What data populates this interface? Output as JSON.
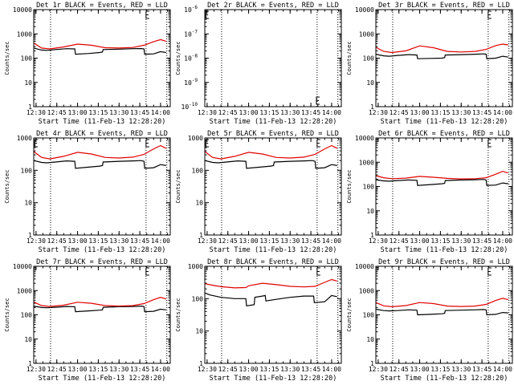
{
  "figure": {
    "background": "#ffffff",
    "colors": {
      "events": "#000000",
      "lld": "#e00000",
      "axes": "#000000"
    }
  },
  "chart_data": [
    {
      "type": "line",
      "id": "det1",
      "title": "Det 1r BLACK = Events, RED = LLD",
      "xlabel": "Start Time (11-Feb-13 12:28:20)",
      "ylabel": "Counts/sec",
      "xlim": [
        "12:28:20",
        "14:07:00"
      ],
      "ylim": [
        1,
        10000
      ],
      "yscale": "log",
      "xticks": [
        "12:30",
        "12:45",
        "13:00",
        "13:15",
        "13:30",
        "13:45",
        "14:00"
      ],
      "yticks": [
        "1",
        "10",
        "100",
        "1000",
        "10000"
      ],
      "vlines": [
        "12:40:30",
        "13:49:30",
        "14:04:30"
      ],
      "corner_marks": [
        "13:49:30"
      ],
      "series": [
        {
          "name": "Events",
          "color": "#000000",
          "x": [
            "12:28:20",
            "12:34:00",
            "12:38:00",
            "12:44:00",
            "12:52:00",
            "12:58:00",
            "12:58:30",
            "13:08:00",
            "13:16:00",
            "13:18:00",
            "13:18:30",
            "13:30:00",
            "13:40:00",
            "13:46:00",
            "13:48:00",
            "13:48:30",
            "13:55:00",
            "14:00:00",
            "14:04:00"
          ],
          "y": [
            260,
            215,
            210,
            225,
            245,
            240,
            145,
            155,
            170,
            180,
            225,
            235,
            245,
            250,
            240,
            145,
            150,
            185,
            170
          ]
        },
        {
          "name": "LLD",
          "color": "#e00000",
          "x": [
            "12:28:20",
            "12:34:00",
            "12:40:00",
            "12:50:00",
            "13:00:00",
            "13:10:00",
            "13:20:00",
            "13:30:00",
            "13:40:00",
            "13:48:00",
            "13:55:00",
            "14:00:00",
            "14:04:00"
          ],
          "y": [
            420,
            260,
            240,
            290,
            380,
            340,
            270,
            260,
            275,
            340,
            480,
            580,
            500
          ]
        }
      ]
    },
    {
      "type": "line",
      "id": "det2",
      "title": "Det 2r BLACK = Events, RED = LLD",
      "xlabel": "Start Time (11-Feb-13 12:28:20)",
      "ylabel": "Counts/sec",
      "xlim": [
        "12:28:20",
        "14:07:00"
      ],
      "ylim": [
        1e-10,
        1e-06
      ],
      "yscale": "log",
      "xticks": [
        "12:30",
        "12:45",
        "13:00",
        "13:15",
        "13:30",
        "13:45",
        "14:00"
      ],
      "yticks": [
        "10^-10",
        "10^-9",
        "10^-8",
        "10^-7",
        "10^-6"
      ],
      "vlines": [
        "12:40:30",
        "13:49:30",
        "14:04:30"
      ],
      "corner_marks": [
        "12:29:00",
        "13:49:00"
      ],
      "series": []
    },
    {
      "type": "line",
      "id": "det3",
      "title": "Det 3r BLACK = Events, RED = LLD",
      "xlabel": "Start Time (11-Feb-13 12:28:20)",
      "ylabel": "Counts/sec",
      "xlim": [
        "12:28:20",
        "14:07:00"
      ],
      "ylim": [
        1,
        10000
      ],
      "yscale": "log",
      "xticks": [
        "12:30",
        "12:45",
        "13:00",
        "13:15",
        "13:30",
        "13:45",
        "14:00"
      ],
      "yticks": [
        "1",
        "10",
        "100",
        "1000",
        "10000"
      ],
      "vlines": [
        "12:40:30",
        "13:49:30",
        "14:04:30"
      ],
      "corner_marks": [
        "13:49:30"
      ],
      "series": [
        {
          "name": "Events",
          "color": "#000000",
          "x": [
            "12:28:20",
            "12:34:00",
            "12:38:00",
            "12:44:00",
            "12:52:00",
            "12:58:00",
            "12:58:30",
            "13:08:00",
            "13:16:00",
            "13:18:00",
            "13:18:30",
            "13:30:00",
            "13:40:00",
            "13:46:00",
            "13:48:00",
            "13:48:30",
            "13:55:00",
            "14:00:00",
            "14:04:00"
          ],
          "y": [
            145,
            125,
            120,
            130,
            140,
            135,
            95,
            98,
            100,
            105,
            135,
            140,
            145,
            150,
            145,
            95,
            100,
            120,
            110
          ]
        },
        {
          "name": "LLD",
          "color": "#e00000",
          "x": [
            "12:28:20",
            "12:34:00",
            "12:40:00",
            "12:50:00",
            "13:00:00",
            "13:10:00",
            "13:20:00",
            "13:30:00",
            "13:40:00",
            "13:48:00",
            "13:55:00",
            "14:00:00",
            "14:04:00"
          ],
          "y": [
            280,
            190,
            170,
            200,
            320,
            270,
            190,
            180,
            190,
            230,
            330,
            380,
            350
          ]
        }
      ]
    },
    {
      "type": "line",
      "id": "det4",
      "title": "Det 4r BLACK = Events, RED = LLD",
      "xlabel": "Start Time (11-Feb-13 12:28:20)",
      "ylabel": "Counts/sec",
      "xlim": [
        "12:28:20",
        "14:07:00"
      ],
      "ylim": [
        1,
        1000
      ],
      "yscale": "log",
      "xticks": [
        "12:30",
        "12:45",
        "13:00",
        "13:15",
        "13:30",
        "13:45",
        "14:00"
      ],
      "yticks": [
        "1",
        "10",
        "100",
        "1000"
      ],
      "vlines": [
        "12:40:30",
        "13:49:30",
        "14:04:30"
      ],
      "corner_marks": [
        "12:29:00",
        "13:49:30"
      ],
      "series": [
        {
          "name": "Events",
          "color": "#000000",
          "x": [
            "12:28:20",
            "12:34:00",
            "12:38:00",
            "12:44:00",
            "12:52:00",
            "12:58:00",
            "12:58:30",
            "13:08:00",
            "13:16:00",
            "13:18:00",
            "13:18:30",
            "13:30:00",
            "13:40:00",
            "13:46:00",
            "13:48:00",
            "13:48:30",
            "13:55:00",
            "14:00:00",
            "14:04:00"
          ],
          "y": [
            200,
            175,
            170,
            180,
            195,
            190,
            115,
            125,
            135,
            140,
            180,
            190,
            195,
            200,
            190,
            115,
            120,
            150,
            140
          ]
        },
        {
          "name": "LLD",
          "color": "#e00000",
          "x": [
            "12:28:20",
            "12:34:00",
            "12:40:00",
            "12:50:00",
            "13:00:00",
            "13:10:00",
            "13:20:00",
            "13:30:00",
            "13:40:00",
            "13:48:00",
            "13:55:00",
            "14:00:00",
            "14:04:00"
          ],
          "y": [
            380,
            250,
            225,
            270,
            360,
            320,
            250,
            240,
            255,
            310,
            460,
            580,
            480
          ]
        }
      ]
    },
    {
      "type": "line",
      "id": "det5",
      "title": "Det 5r BLACK = Events, RED = LLD",
      "xlabel": "Start Time (11-Feb-13 12:28:20)",
      "ylabel": "Counts/sec",
      "xlim": [
        "12:28:20",
        "14:07:00"
      ],
      "ylim": [
        1,
        1000
      ],
      "yscale": "log",
      "xticks": [
        "12:30",
        "12:45",
        "13:00",
        "13:15",
        "13:30",
        "13:45",
        "14:00"
      ],
      "yticks": [
        "1",
        "10",
        "100",
        "1000"
      ],
      "vlines": [
        "12:40:30",
        "13:49:30",
        "14:04:30"
      ],
      "corner_marks": [
        "12:29:00",
        "13:49:30"
      ],
      "series": [
        {
          "name": "Events",
          "color": "#000000",
          "x": [
            "12:28:20",
            "12:34:00",
            "12:38:00",
            "12:44:00",
            "12:52:00",
            "12:58:00",
            "12:58:30",
            "13:08:00",
            "13:16:00",
            "13:18:00",
            "13:18:30",
            "13:30:00",
            "13:40:00",
            "13:46:00",
            "13:48:00",
            "13:48:30",
            "13:55:00",
            "14:00:00",
            "14:04:00"
          ],
          "y": [
            200,
            175,
            170,
            180,
            195,
            190,
            115,
            125,
            135,
            140,
            180,
            190,
            195,
            200,
            190,
            115,
            120,
            150,
            140
          ]
        },
        {
          "name": "LLD",
          "color": "#e00000",
          "x": [
            "12:28:20",
            "12:34:00",
            "12:40:00",
            "12:50:00",
            "13:00:00",
            "13:10:00",
            "13:20:00",
            "13:30:00",
            "13:40:00",
            "13:48:00",
            "13:55:00",
            "14:00:00",
            "14:04:00"
          ],
          "y": [
            380,
            250,
            225,
            270,
            360,
            320,
            250,
            240,
            255,
            310,
            460,
            580,
            480
          ]
        }
      ]
    },
    {
      "type": "line",
      "id": "det6",
      "title": "Det 6r BLACK = Events, RED = LLD",
      "xlabel": "Start Time (11-Feb-13 12:28:20)",
      "ylabel": "Counts/sec",
      "xlim": [
        "12:28:20",
        "14:07:00"
      ],
      "ylim": [
        1,
        10000
      ],
      "yscale": "log",
      "xticks": [
        "12:30",
        "12:45",
        "13:00",
        "13:15",
        "13:30",
        "13:45",
        "14:00"
      ],
      "yticks": [
        "1",
        "10",
        "100",
        "1000",
        "10000"
      ],
      "vlines": [
        "12:40:30",
        "13:49:30",
        "14:04:30"
      ],
      "corner_marks": [
        "13:49:30"
      ],
      "series": [
        {
          "name": "Events",
          "color": "#000000",
          "x": [
            "12:28:20",
            "12:34:00",
            "12:38:00",
            "12:44:00",
            "12:52:00",
            "12:58:00",
            "12:58:30",
            "13:08:00",
            "13:16:00",
            "13:18:00",
            "13:18:30",
            "13:30:00",
            "13:40:00",
            "13:46:00",
            "13:48:00",
            "13:48:30",
            "13:55:00",
            "14:00:00",
            "14:04:00"
          ],
          "y": [
            190,
            170,
            165,
            175,
            185,
            180,
            110,
            120,
            130,
            135,
            175,
            185,
            190,
            195,
            185,
            110,
            115,
            140,
            130
          ]
        },
        {
          "name": "LLD",
          "color": "#e00000",
          "x": [
            "12:28:20",
            "12:34:00",
            "12:40:00",
            "12:50:00",
            "13:00:00",
            "13:10:00",
            "13:20:00",
            "13:30:00",
            "13:40:00",
            "13:48:00",
            "13:55:00",
            "14:00:00",
            "14:04:00"
          ],
          "y": [
            280,
            230,
            210,
            220,
            260,
            240,
            215,
            205,
            210,
            230,
            320,
            420,
            360
          ]
        }
      ]
    },
    {
      "type": "line",
      "id": "det7",
      "title": "Det 7r BLACK = Events, RED = LLD",
      "xlabel": "Start Time (11-Feb-13 12:28:20)",
      "ylabel": "Counts/sec",
      "xlim": [
        "12:28:20",
        "14:07:00"
      ],
      "ylim": [
        1,
        10000
      ],
      "yscale": "log",
      "xticks": [
        "12:30",
        "12:45",
        "13:00",
        "13:15",
        "13:30",
        "13:45",
        "14:00"
      ],
      "yticks": [
        "1",
        "10",
        "100",
        "1000",
        "10000"
      ],
      "vlines": [
        "12:40:30",
        "13:49:30",
        "14:04:30"
      ],
      "corner_marks": [
        "13:49:30"
      ],
      "series": [
        {
          "name": "Events",
          "color": "#000000",
          "x": [
            "12:28:20",
            "12:34:00",
            "12:38:00",
            "12:44:00",
            "12:52:00",
            "12:58:00",
            "12:58:30",
            "13:08:00",
            "13:16:00",
            "13:18:00",
            "13:18:30",
            "13:30:00",
            "13:40:00",
            "13:46:00",
            "13:48:00",
            "13:48:30",
            "13:55:00",
            "14:00:00",
            "14:04:00"
          ],
          "y": [
            230,
            200,
            195,
            205,
            220,
            215,
            135,
            145,
            155,
            160,
            205,
            215,
            220,
            230,
            220,
            135,
            140,
            170,
            160
          ]
        },
        {
          "name": "LLD",
          "color": "#e00000",
          "x": [
            "12:28:20",
            "12:34:00",
            "12:40:00",
            "12:50:00",
            "13:00:00",
            "13:10:00",
            "13:20:00",
            "13:30:00",
            "13:40:00",
            "13:48:00",
            "13:55:00",
            "14:00:00",
            "14:04:00"
          ],
          "y": [
            340,
            240,
            220,
            250,
            330,
            300,
            240,
            230,
            240,
            290,
            420,
            520,
            450
          ]
        }
      ]
    },
    {
      "type": "line",
      "id": "det8",
      "title": "Det 8r BLACK = Events, RED = LLD",
      "xlabel": "Start Time (11-Feb-13 12:28:20)",
      "ylabel": "Counts/sec",
      "xlim": [
        "12:28:20",
        "14:07:00"
      ],
      "ylim": [
        1,
        1000
      ],
      "yscale": "log",
      "xticks": [
        "12:30",
        "12:45",
        "13:00",
        "13:15",
        "13:30",
        "13:45",
        "14:00"
      ],
      "yticks": [
        "1",
        "10",
        "100",
        "1000"
      ],
      "vlines": [
        "12:40:30",
        "13:49:30",
        "14:04:30"
      ],
      "corner_marks": [
        "13:49:30"
      ],
      "series": [
        {
          "name": "Events",
          "color": "#000000",
          "x": [
            "12:28:20",
            "12:32:00",
            "12:40:00",
            "12:50:00",
            "12:58:00",
            "12:58:30",
            "13:04:00",
            "13:04:30",
            "13:10:00",
            "13:12:00",
            "13:12:30",
            "13:20:00",
            "13:30:00",
            "13:40:00",
            "13:47:00",
            "13:47:30",
            "13:55:00",
            "14:00:00",
            "14:04:00"
          ],
          "y": [
            150,
            130,
            110,
            100,
            100,
            60,
            65,
            110,
            120,
            125,
            85,
            95,
            110,
            120,
            120,
            75,
            80,
            125,
            115
          ]
        },
        {
          "name": "LLD",
          "color": "#e00000",
          "x": [
            "12:28:20",
            "12:34:00",
            "12:40:00",
            "12:50:00",
            "12:58:00",
            "13:00:00",
            "13:10:00",
            "13:20:00",
            "13:30:00",
            "13:40:00",
            "13:48:00",
            "13:55:00",
            "14:00:00",
            "14:04:00"
          ],
          "y": [
            290,
            260,
            235,
            215,
            220,
            250,
            300,
            270,
            240,
            230,
            240,
            320,
            390,
            350
          ]
        }
      ]
    },
    {
      "type": "line",
      "id": "det9",
      "title": "Det 9r BLACK = Events, RED = LLD",
      "xlabel": "Start Time (11-Feb-13 12:28:20)",
      "ylabel": "Counts/sec",
      "xlim": [
        "12:28:20",
        "14:07:00"
      ],
      "ylim": [
        1,
        10000
      ],
      "yscale": "log",
      "xticks": [
        "12:30",
        "12:45",
        "13:00",
        "13:15",
        "13:30",
        "13:45",
        "14:00"
      ],
      "yticks": [
        "1",
        "10",
        "100",
        "1000",
        "10000"
      ],
      "vlines": [
        "12:40:30",
        "13:49:30",
        "14:04:30"
      ],
      "corner_marks": [
        "13:49:30"
      ],
      "series": [
        {
          "name": "Events",
          "color": "#000000",
          "x": [
            "12:28:20",
            "12:34:00",
            "12:38:00",
            "12:44:00",
            "12:52:00",
            "12:58:00",
            "12:58:30",
            "13:08:00",
            "13:16:00",
            "13:18:00",
            "13:18:30",
            "13:30:00",
            "13:40:00",
            "13:46:00",
            "13:48:00",
            "13:48:30",
            "13:55:00",
            "14:00:00",
            "14:04:00"
          ],
          "y": [
            170,
            150,
            145,
            150,
            160,
            155,
            100,
            105,
            110,
            115,
            150,
            155,
            160,
            165,
            160,
            100,
            105,
            125,
            120
          ]
        },
        {
          "name": "LLD",
          "color": "#e00000",
          "x": [
            "12:28:20",
            "12:34:00",
            "12:40:00",
            "12:50:00",
            "13:00:00",
            "13:10:00",
            "13:20:00",
            "13:30:00",
            "13:40:00",
            "13:48:00",
            "13:55:00",
            "14:00:00",
            "14:04:00"
          ],
          "y": [
            320,
            235,
            215,
            240,
            320,
            290,
            230,
            220,
            230,
            270,
            390,
            480,
            420
          ]
        }
      ]
    }
  ]
}
